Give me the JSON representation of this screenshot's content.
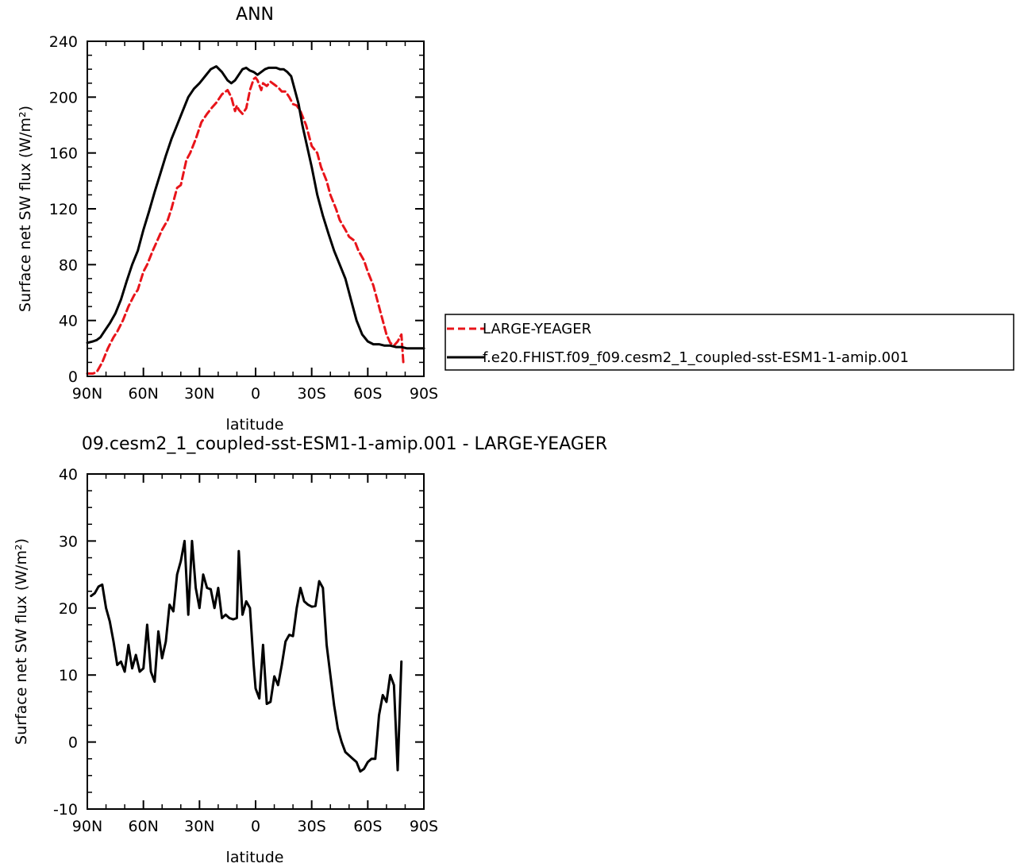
{
  "chart_data": [
    {
      "type": "line",
      "title": "ANN",
      "xlabel": "latitude",
      "ylabel": "Surface net SW flux (W/m²)",
      "xlim": [
        90,
        -90
      ],
      "ylim": [
        0,
        240
      ],
      "xticks": [
        {
          "value": 90,
          "label": "90N"
        },
        {
          "value": 60,
          "label": "60N"
        },
        {
          "value": 30,
          "label": "30N"
        },
        {
          "value": 0,
          "label": "0"
        },
        {
          "value": -30,
          "label": "30S"
        },
        {
          "value": -60,
          "label": "60S"
        },
        {
          "value": -90,
          "label": "90S"
        }
      ],
      "yticks": [
        {
          "value": 0,
          "label": "0"
        },
        {
          "value": 40,
          "label": "40"
        },
        {
          "value": 80,
          "label": "80"
        },
        {
          "value": 120,
          "label": "120"
        },
        {
          "value": 160,
          "label": "160"
        },
        {
          "value": 200,
          "label": "200"
        },
        {
          "value": 240,
          "label": "240"
        }
      ],
      "legend_position": "right",
      "series": [
        {
          "name": "LARGE-YEAGER",
          "color": "#e8141a",
          "dash": "dashed",
          "x": [
            90,
            87,
            85,
            82,
            79,
            76,
            74,
            71,
            68,
            65,
            63,
            60,
            58,
            55,
            53,
            50,
            47,
            45,
            42,
            40,
            37,
            35,
            32,
            29,
            26,
            23,
            21,
            18,
            15,
            13,
            11,
            10,
            9,
            7,
            5,
            3,
            1,
            0,
            -1,
            -3,
            -4,
            -6,
            -8,
            -10,
            -12,
            -14,
            -16,
            -18,
            -20,
            -22,
            -24,
            -27,
            -30,
            -33,
            -35,
            -38,
            -40,
            -43,
            -45,
            -48,
            -50,
            -53,
            -55,
            -58,
            -60,
            -63,
            -65,
            -68,
            -70,
            -72,
            -74,
            -76,
            -78,
            -79
          ],
          "y": [
            2,
            2,
            3,
            10,
            20,
            28,
            32,
            40,
            50,
            58,
            62,
            75,
            80,
            90,
            96,
            105,
            112,
            120,
            135,
            137,
            155,
            160,
            170,
            182,
            188,
            193,
            196,
            202,
            205,
            200,
            190,
            194,
            191,
            188,
            192,
            205,
            213,
            214,
            212,
            205,
            210,
            208,
            211,
            209,
            207,
            204,
            204,
            200,
            195,
            194,
            190,
            180,
            165,
            160,
            150,
            140,
            130,
            120,
            112,
            105,
            100,
            97,
            90,
            83,
            75,
            65,
            55,
            40,
            30,
            24,
            22,
            25,
            30,
            10
          ]
        },
        {
          "name": "f.e20.FHIST.f09_f09.cesm2_1_coupled-sst-ESM1-1-amip.001",
          "color": "#000000",
          "dash": "solid",
          "x": [
            90,
            87,
            85,
            83,
            81,
            78,
            75,
            72,
            69,
            66,
            63,
            60,
            57,
            54,
            51,
            48,
            45,
            42,
            39,
            36,
            33,
            30,
            27,
            24,
            21,
            18,
            15,
            13,
            11,
            9,
            7,
            5,
            3,
            1,
            0,
            -1,
            -3,
            -5,
            -7,
            -9,
            -11,
            -13,
            -15,
            -17,
            -19,
            -21,
            -23,
            -25,
            -27,
            -30,
            -33,
            -36,
            -39,
            -42,
            -45,
            -48,
            -51,
            -54,
            -57,
            -60,
            -63,
            -66,
            -69,
            -72,
            -75,
            -78,
            -81,
            -84,
            -87,
            -90
          ],
          "y": [
            24,
            25,
            26,
            28,
            32,
            38,
            45,
            55,
            68,
            80,
            90,
            105,
            118,
            132,
            145,
            158,
            170,
            180,
            190,
            200,
            206,
            210,
            215,
            220,
            222,
            218,
            212,
            210,
            212,
            216,
            220,
            221,
            219,
            218,
            217,
            216,
            218,
            220,
            221,
            221,
            221,
            220,
            220,
            218,
            215,
            205,
            195,
            180,
            168,
            150,
            130,
            115,
            102,
            90,
            80,
            70,
            55,
            40,
            30,
            25,
            23,
            23,
            22,
            22,
            21,
            21,
            20,
            20,
            20,
            20
          ]
        }
      ]
    },
    {
      "type": "line",
      "title": "09.cesm2_1_coupled-sst-ESM1-1-amip.001 - LARGE-YEAGER",
      "xlabel": "latitude",
      "ylabel": "Surface net SW flux (W/m²)",
      "xlim": [
        90,
        -90
      ],
      "ylim": [
        -10,
        40
      ],
      "xticks": [
        {
          "value": 90,
          "label": "90N"
        },
        {
          "value": 60,
          "label": "60N"
        },
        {
          "value": 30,
          "label": "30N"
        },
        {
          "value": 0,
          "label": "0"
        },
        {
          "value": -30,
          "label": "30S"
        },
        {
          "value": -60,
          "label": "60S"
        },
        {
          "value": -90,
          "label": "90S"
        }
      ],
      "yticks": [
        {
          "value": -10,
          "label": "-10"
        },
        {
          "value": 0,
          "label": "0"
        },
        {
          "value": 10,
          "label": "10"
        },
        {
          "value": 20,
          "label": "20"
        },
        {
          "value": 30,
          "label": "30"
        },
        {
          "value": 40,
          "label": "40"
        }
      ],
      "series": [
        {
          "color": "#000000",
          "dash": "solid",
          "x": [
            88,
            86,
            84,
            82,
            80,
            78,
            76,
            74,
            72,
            70,
            68,
            66,
            64,
            62,
            60,
            58,
            56,
            54,
            52,
            50,
            48,
            46,
            44,
            42,
            40,
            38,
            36,
            34,
            32,
            30,
            28,
            26,
            24,
            22,
            20,
            18,
            16,
            14,
            12,
            10,
            9,
            7,
            5,
            3,
            1,
            0,
            -2,
            -4,
            -6,
            -8,
            -10,
            -12,
            -14,
            -16,
            -18,
            -20,
            -22,
            -24,
            -26,
            -28,
            -30,
            -32,
            -34,
            -36,
            -38,
            -40,
            -42,
            -44,
            -46,
            -48,
            -50,
            -52,
            -54,
            -56,
            -58,
            -60,
            -62,
            -64,
            -66,
            -68,
            -70,
            -72,
            -74,
            -76,
            -78
          ],
          "y": [
            21.8,
            22.2,
            23.2,
            23.5,
            20,
            18,
            15,
            11.5,
            12,
            10.5,
            14.5,
            11,
            13,
            10.5,
            11,
            17.5,
            10.5,
            9,
            16.5,
            12.5,
            15,
            20.5,
            19.5,
            25,
            27,
            30,
            19,
            30,
            23,
            20,
            25,
            23,
            22.8,
            20,
            23,
            18.5,
            19,
            18.5,
            18.3,
            18.5,
            28.5,
            19,
            21,
            20,
            11.5,
            8,
            6.5,
            14.5,
            5.7,
            6,
            9.8,
            8.5,
            11.5,
            15,
            16,
            15.8,
            20,
            23,
            21,
            20.5,
            20.2,
            20.3,
            24,
            23,
            14.5,
            10,
            5.5,
            2,
            0,
            -1.5,
            -2,
            -2.5,
            -3,
            -4.4,
            -4,
            -3,
            -2.5,
            -2.5,
            4,
            7,
            6,
            10,
            8.5,
            -4.2,
            12
          ]
        }
      ]
    }
  ]
}
